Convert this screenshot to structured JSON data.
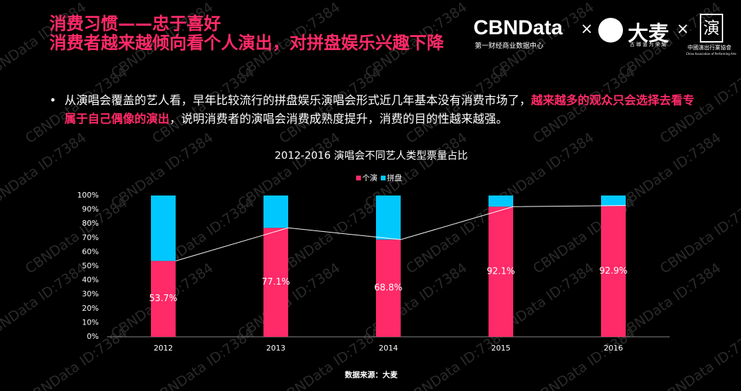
{
  "header": {
    "title_line1": "消费习惯——忠于喜好",
    "title_line2": "消费者越来越倾向看个人演出，对拼盘娱乐兴趣下降"
  },
  "logos": {
    "cbn": "CBNData",
    "cbn_sub": "第一财经商业数据中心",
    "times1": "×",
    "damai": "大麦",
    "damai_sub": "古 瑯 道 为 荣 耀",
    "times2": "×",
    "caca_seal": "演",
    "caca_name": "中國演出行業協會",
    "caca_en": "China Association of Performing Arts"
  },
  "bullet": {
    "mark": "•",
    "part1": "从演唱会覆盖的艺人看，早年比较流行的拼盘娱乐演唱会形式近几年基本没有消费市场了，",
    "part2": "越来越多的观众只会选择去看专属于自己偶像的演出",
    "part3": "，说明消费者的演唱会消费成熟度提升，消费的目的性越来越强。"
  },
  "watermark": "CBNData ID:7384",
  "chart_data": {
    "type": "stacked_bar",
    "title": "2012-2016 演唱会不同艺人类型票量占比",
    "categories": [
      "2012",
      "2013",
      "2014",
      "2015",
      "2016"
    ],
    "series": [
      {
        "name": "个演",
        "color": "#ff2a68",
        "values": [
          53.7,
          77.1,
          68.8,
          92.1,
          92.9
        ],
        "value_labels": [
          "53.7%",
          "77.1%",
          "68.8%",
          "92.1%",
          "92.9%"
        ]
      },
      {
        "name": "拼盘",
        "color": "#00c8ff",
        "values": [
          46.3,
          22.9,
          31.2,
          7.9,
          7.1
        ]
      }
    ],
    "ylim": [
      0,
      100
    ],
    "yticks": [
      {
        "value": 0,
        "label": "0%"
      },
      {
        "value": 10,
        "label": "10%"
      },
      {
        "value": 20,
        "label": "20%"
      },
      {
        "value": 30,
        "label": "30%"
      },
      {
        "value": 40,
        "label": "40%"
      },
      {
        "value": 50,
        "label": "50%"
      },
      {
        "value": 60,
        "label": "60%"
      },
      {
        "value": 70,
        "label": "70%"
      },
      {
        "value": 80,
        "label": "80%"
      },
      {
        "value": 90,
        "label": "90%"
      },
      {
        "value": 100,
        "label": "100%"
      }
    ],
    "trend_line_color": "#ffffff",
    "legend": "top",
    "source": "数据来源：大麦"
  }
}
